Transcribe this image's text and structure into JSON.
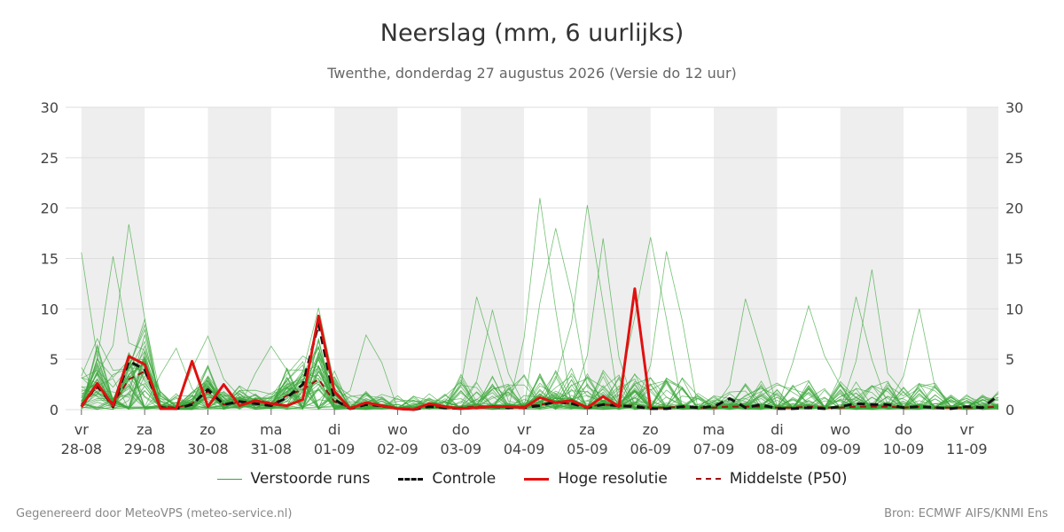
{
  "chart_data": {
    "type": "line",
    "title": "Neerslag (mm, 6 uurlijks)",
    "subtitle": "Twenthe, donderdag 27 augustus 2026 (Versie do 12 uur)",
    "ylim": [
      0,
      30
    ],
    "yticks": [
      0,
      5,
      10,
      15,
      20,
      25,
      30
    ],
    "xlim": [
      -0.25,
      14.5
    ],
    "x_ticks": [
      {
        "x": 0,
        "day": "vr",
        "date": "28-08"
      },
      {
        "x": 1,
        "day": "za",
        "date": "29-08"
      },
      {
        "x": 2,
        "day": "zo",
        "date": "30-08"
      },
      {
        "x": 3,
        "day": "ma",
        "date": "31-08"
      },
      {
        "x": 4,
        "day": "di",
        "date": "01-09"
      },
      {
        "x": 5,
        "day": "wo",
        "date": "02-09"
      },
      {
        "x": 6,
        "day": "do",
        "date": "03-09"
      },
      {
        "x": 7,
        "day": "vr",
        "date": "04-09"
      },
      {
        "x": 8,
        "day": "za",
        "date": "05-09"
      },
      {
        "x": 9,
        "day": "zo",
        "date": "06-09"
      },
      {
        "x": 10,
        "day": "ma",
        "date": "07-09"
      },
      {
        "x": 11,
        "day": "di",
        "date": "08-09"
      },
      {
        "x": 12,
        "day": "wo",
        "date": "09-09"
      },
      {
        "x": 13,
        "day": "do",
        "date": "10-09"
      },
      {
        "x": 14,
        "day": "vr",
        "date": "11-09"
      }
    ],
    "shaded_days": [
      [
        0,
        1
      ],
      [
        2,
        3
      ],
      [
        4,
        5
      ],
      [
        6,
        7
      ],
      [
        8,
        9
      ],
      [
        10,
        11
      ],
      [
        12,
        13
      ],
      [
        14,
        14.5
      ]
    ],
    "grid": true,
    "legend_position": "bottom",
    "colors": {
      "ensemble": "#3aa63a",
      "control": "#111111",
      "high_res": "#e01010",
      "median": "#a01010",
      "shade": "#eeeeee",
      "grid": "#dddddd"
    },
    "legend": {
      "ensemble": "Verstoorde runs",
      "control": "Controle",
      "high_res": "Hoge resolutie",
      "median": "Middelste (P50)"
    },
    "ensemble_peaks": [
      {
        "x": 0,
        "y": 15.6
      },
      {
        "x": 0.5,
        "y": 15.2
      },
      {
        "x": 0.75,
        "y": 18.4
      },
      {
        "x": 1.5,
        "y": 6.1
      },
      {
        "x": 2,
        "y": 7.3
      },
      {
        "x": 3,
        "y": 6.3
      },
      {
        "x": 3.75,
        "y": 10.1
      },
      {
        "x": 4.5,
        "y": 7.4
      },
      {
        "x": 6.25,
        "y": 11.2
      },
      {
        "x": 6.5,
        "y": 9.9
      },
      {
        "x": 7.25,
        "y": 21.0
      },
      {
        "x": 7.5,
        "y": 18.0
      },
      {
        "x": 8,
        "y": 20.3
      },
      {
        "x": 8.25,
        "y": 17.0
      },
      {
        "x": 9,
        "y": 17.1
      },
      {
        "x": 9.25,
        "y": 15.7
      },
      {
        "x": 10.5,
        "y": 11.0
      },
      {
        "x": 11.5,
        "y": 10.3
      },
      {
        "x": 12.25,
        "y": 11.2
      },
      {
        "x": 12.5,
        "y": 13.9
      },
      {
        "x": 13.25,
        "y": 10.0
      }
    ],
    "series": [
      {
        "name": "Controle",
        "key": "control",
        "style": "dashed",
        "x": [
          0,
          0.25,
          0.5,
          0.75,
          1,
          1.25,
          1.5,
          1.75,
          2,
          2.25,
          2.5,
          2.75,
          3,
          3.25,
          3.5,
          3.75,
          4,
          4.25,
          4.5,
          4.75,
          5,
          5.25,
          5.5,
          5.75,
          6,
          6.25,
          6.5,
          6.75,
          7,
          7.25,
          7.5,
          7.75,
          8,
          8.25,
          8.5,
          8.75,
          9,
          9.25,
          9.5,
          9.75,
          10,
          10.25,
          10.5,
          10.75,
          11,
          11.25,
          11.5,
          11.75,
          12,
          12.25,
          12.5,
          12.75,
          13,
          13.25,
          13.5,
          13.75,
          14,
          14.25,
          14.5
        ],
        "values": [
          0.3,
          2.5,
          0.3,
          4.8,
          4.0,
          0.2,
          0.1,
          0.5,
          2.0,
          0.5,
          0.8,
          0.6,
          0.4,
          1.2,
          2.5,
          8.5,
          1.0,
          0.1,
          0.5,
          0.4,
          0.1,
          0.0,
          0.3,
          0.2,
          0.1,
          0.2,
          0.3,
          0.2,
          0.2,
          0.4,
          0.8,
          0.6,
          0.2,
          0.5,
          0.4,
          0.3,
          0.1,
          0.1,
          0.3,
          0.2,
          0.3,
          1.1,
          0.2,
          0.5,
          0.1,
          0.1,
          0.2,
          0.1,
          0.3,
          0.6,
          0.5,
          0.5,
          0.2,
          0.3,
          0.2,
          0.1,
          0.3,
          0.2,
          1.4
        ]
      },
      {
        "name": "Hoge resolutie",
        "key": "high_res",
        "style": "solid",
        "x": [
          0,
          0.25,
          0.5,
          0.75,
          1,
          1.25,
          1.5,
          1.75,
          2,
          2.25,
          2.5,
          2.75,
          3,
          3.25,
          3.5,
          3.75,
          4,
          4.25,
          4.5,
          4.75,
          5,
          5.25,
          5.5,
          5.75,
          6,
          6.25,
          6.5,
          6.75,
          7,
          7.25,
          7.5,
          7.75,
          8,
          8.25,
          8.5,
          8.75,
          9
        ],
        "values": [
          0.3,
          2.6,
          0.4,
          5.3,
          4.5,
          0.1,
          0.1,
          4.8,
          0.3,
          2.5,
          0.4,
          0.9,
          0.6,
          0.4,
          1.0,
          9.3,
          1.8,
          0.1,
          0.7,
          0.4,
          0.1,
          0.0,
          0.6,
          0.3,
          0.1,
          0.2,
          0.3,
          0.3,
          0.2,
          1.2,
          0.7,
          0.9,
          0.2,
          1.3,
          0.3,
          12.0,
          0.1
        ]
      },
      {
        "name": "Middelste (P50)",
        "key": "median",
        "style": "dashed",
        "x": [
          0,
          0.25,
          0.5,
          0.75,
          1,
          1.25,
          1.5,
          1.75,
          2,
          2.25,
          2.5,
          2.75,
          3,
          3.25,
          3.5,
          3.75,
          4,
          4.25,
          4.5,
          4.75,
          5,
          5.25,
          5.5,
          5.75,
          6,
          6.25,
          6.5,
          6.75,
          7,
          7.25,
          7.5,
          7.75,
          8,
          8.25,
          8.5,
          8.75,
          9,
          9.25,
          9.5,
          9.75,
          10,
          10.25,
          10.5,
          10.75,
          11,
          11.25,
          11.5,
          11.75,
          12,
          12.25,
          12.5,
          12.75,
          13,
          13.25,
          13.5,
          13.75,
          14,
          14.25,
          14.5
        ],
        "values": [
          0.5,
          2.2,
          0.6,
          3.0,
          3.8,
          0.3,
          0.2,
          0.6,
          1.8,
          0.5,
          0.7,
          0.6,
          0.4,
          1.4,
          2.0,
          3.0,
          0.8,
          0.2,
          0.5,
          0.3,
          0.1,
          0.1,
          0.3,
          0.2,
          0.2,
          0.3,
          0.3,
          0.3,
          0.3,
          0.5,
          0.7,
          0.6,
          0.3,
          0.5,
          0.4,
          0.4,
          0.2,
          0.2,
          0.3,
          0.2,
          0.2,
          0.3,
          0.3,
          0.3,
          0.2,
          0.2,
          0.3,
          0.2,
          0.2,
          0.3,
          0.3,
          0.3,
          0.2,
          0.3,
          0.2,
          0.2,
          0.2,
          0.2,
          0.3
        ]
      }
    ]
  },
  "footer": {
    "left": "Gegenereerd door MeteoVPS (meteo-service.nl)",
    "right": "Bron: ECMWF AIFS/KNMI Ens"
  }
}
